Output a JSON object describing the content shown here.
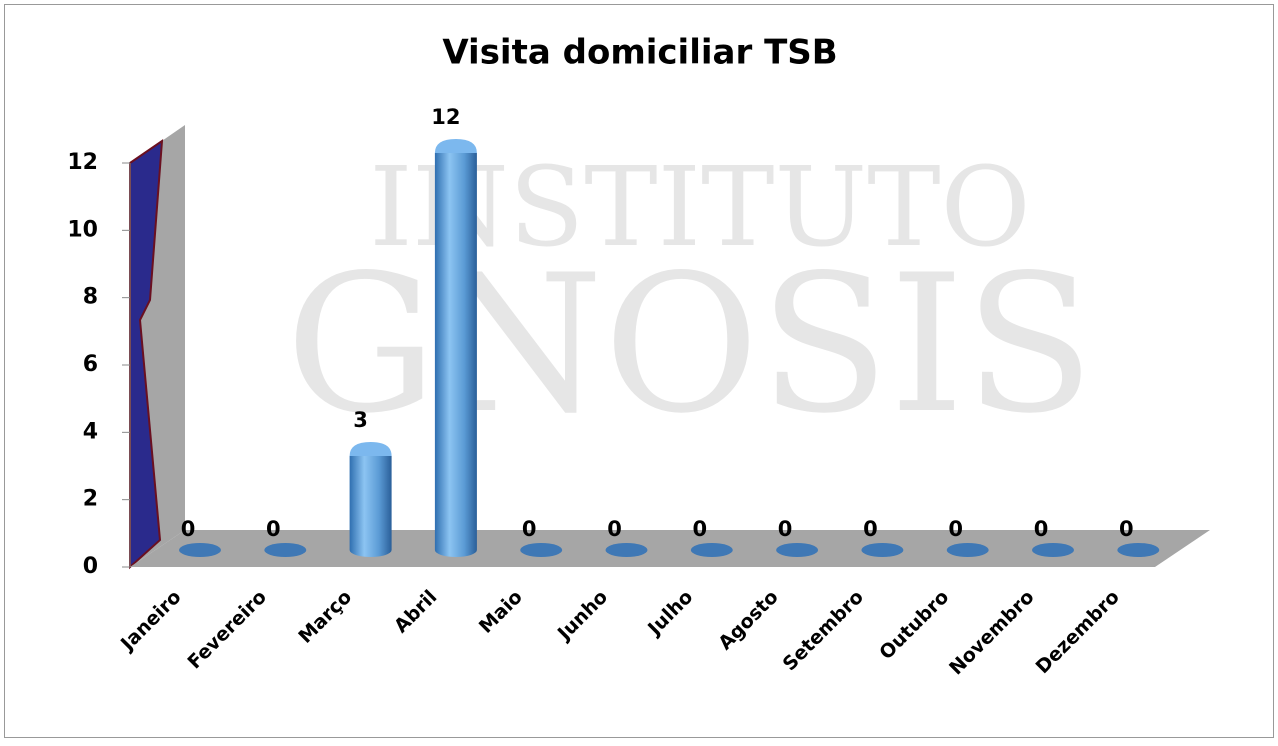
{
  "chart_data": {
    "type": "bar",
    "title": "Visita domiciliar TSB",
    "watermark": [
      "INSTITUTO",
      "GNOSIS"
    ],
    "categories": [
      "Janeiro",
      "Fevereiro",
      "Março",
      "Abril",
      "Maio",
      "Junho",
      "Julho",
      "Agosto",
      "Setembro",
      "Outubro",
      "Novembro",
      "Dezembro"
    ],
    "values": [
      0,
      0,
      3,
      12,
      0,
      0,
      0,
      0,
      0,
      0,
      0,
      0
    ],
    "color": "#5b9bd5",
    "ylim": [
      0,
      12
    ],
    "yticks": [
      0,
      2,
      4,
      6,
      8,
      10,
      12
    ]
  }
}
